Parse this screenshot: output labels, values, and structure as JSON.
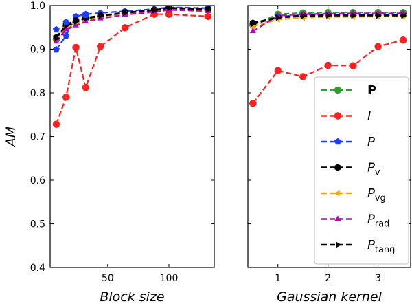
{
  "chart_data": [
    {
      "type": "line",
      "xlabel": "Block size",
      "ylabel": "AM",
      "ylim": [
        0.4,
        1.0
      ],
      "xlim": [
        3,
        137
      ],
      "yticks": [
        "0.4",
        "0.5",
        "0.6",
        "0.7",
        "0.8",
        "0.9",
        "1.0"
      ],
      "xticks": [
        "50",
        "100"
      ],
      "grid": false,
      "x": [
        8,
        16,
        24,
        32,
        44,
        64,
        88,
        100,
        132
      ],
      "series": [
        {
          "name": "P",
          "color": "#2ca02c",
          "marker": "circle",
          "values": [
            0.922,
            0.952,
            0.962,
            0.97,
            0.975,
            0.982,
            0.988,
            0.993,
            0.99
          ]
        },
        {
          "name": "I",
          "color": "#ff2020",
          "marker": "circle",
          "values": [
            0.728,
            0.79,
            0.904,
            0.812,
            0.906,
            0.949,
            0.98,
            0.98,
            0.975
          ]
        },
        {
          "name": "P",
          "color": "#1f3cff",
          "marker": "pentagon",
          "values": [
            0.899,
            0.931,
            0.975,
            0.98,
            0.983,
            0.987,
            0.992,
            0.996,
            0.994
          ]
        },
        {
          "name": "P_v",
          "color": "#000000",
          "marker": "hexagon",
          "values": [
            0.927,
            0.956,
            0.966,
            0.972,
            0.977,
            0.984,
            0.99,
            0.995,
            0.992
          ]
        },
        {
          "name": "P_vg",
          "color": "#ffa500",
          "marker": "triangle-left",
          "values": [
            0.921,
            0.95,
            0.958,
            0.966,
            0.972,
            0.98,
            0.986,
            0.991,
            0.988
          ]
        },
        {
          "name": "P_rad",
          "color": "#bf00bf",
          "marker": "triangle-up",
          "values": [
            0.917,
            0.945,
            0.954,
            0.963,
            0.97,
            0.979,
            0.985,
            0.99,
            0.987
          ]
        },
        {
          "name": "P_tang",
          "color": "#000000",
          "marker": "triangle-right",
          "values": [
            0.925,
            0.954,
            0.963,
            0.97,
            0.976,
            0.983,
            0.989,
            0.994,
            0.991
          ]
        }
      ],
      "extra_points": [
        {
          "series": "P",
          "x": 8,
          "y": 0.945
        },
        {
          "series": "P",
          "x": 16,
          "y": 0.962
        },
        {
          "series": "P",
          "x": 32,
          "y": 0.978
        }
      ]
    },
    {
      "type": "line",
      "xlabel": "Gaussian kernel",
      "ylabel": "",
      "ylim": [
        0.4,
        1.0
      ],
      "xlim": [
        0.4,
        3.65
      ],
      "xticks": [
        "1",
        "2",
        "3"
      ],
      "grid": false,
      "x": [
        0.5,
        1.0,
        1.5,
        2.0,
        2.5,
        3.0,
        3.5
      ],
      "series": [
        {
          "name": "P",
          "color": "#2ca02c",
          "marker": "circle",
          "values": [
            0.955,
            0.98,
            0.983,
            0.984,
            0.984,
            0.984,
            0.984
          ]
        },
        {
          "name": "I",
          "color": "#ff2020",
          "marker": "circle",
          "values": [
            0.776,
            0.851,
            0.837,
            0.863,
            0.862,
            0.906,
            0.921
          ]
        },
        {
          "name": "P",
          "color": "#1f3cff",
          "marker": "pentagon",
          "values": [
            0.957,
            0.975,
            0.978,
            0.979,
            0.979,
            0.979,
            0.979
          ]
        },
        {
          "name": "P_v",
          "color": "#000000",
          "marker": "hexagon",
          "values": [
            0.96,
            0.973,
            0.977,
            0.978,
            0.978,
            0.978,
            0.978
          ]
        },
        {
          "name": "P_vg",
          "color": "#ffa500",
          "marker": "triangle-left",
          "values": [
            0.952,
            0.968,
            0.972,
            0.974,
            0.974,
            0.975,
            0.975
          ]
        },
        {
          "name": "P_rad",
          "color": "#bf00bf",
          "marker": "triangle-up",
          "values": [
            0.941,
            0.977,
            0.98,
            0.981,
            0.982,
            0.982,
            0.982
          ]
        },
        {
          "name": "P_tang",
          "color": "#000000",
          "marker": "triangle-right",
          "values": [
            0.958,
            0.972,
            0.976,
            0.977,
            0.977,
            0.977,
            0.977
          ]
        }
      ]
    }
  ],
  "legend": {
    "placement": "lower-right of right panel",
    "entries": [
      {
        "base": "P",
        "sub": "",
        "style": "bold",
        "color": "#2ca02c",
        "marker": "circle"
      },
      {
        "base": "I",
        "sub": "",
        "style": "italic",
        "color": "#ff2020",
        "marker": "circle"
      },
      {
        "base": "P",
        "sub": "",
        "style": "italic",
        "color": "#1f3cff",
        "marker": "pentagon"
      },
      {
        "base": "P",
        "sub": "v",
        "style": "italic",
        "color": "#000000",
        "marker": "hexagon"
      },
      {
        "base": "P",
        "sub": "vg",
        "style": "italic",
        "color": "#ffa500",
        "marker": "triangle-left"
      },
      {
        "base": "P",
        "sub": "rad",
        "style": "italic",
        "color": "#bf00bf",
        "marker": "triangle-up"
      },
      {
        "base": "P",
        "sub": "tang",
        "style": "italic",
        "color": "#000000",
        "marker": "triangle-right"
      }
    ]
  }
}
